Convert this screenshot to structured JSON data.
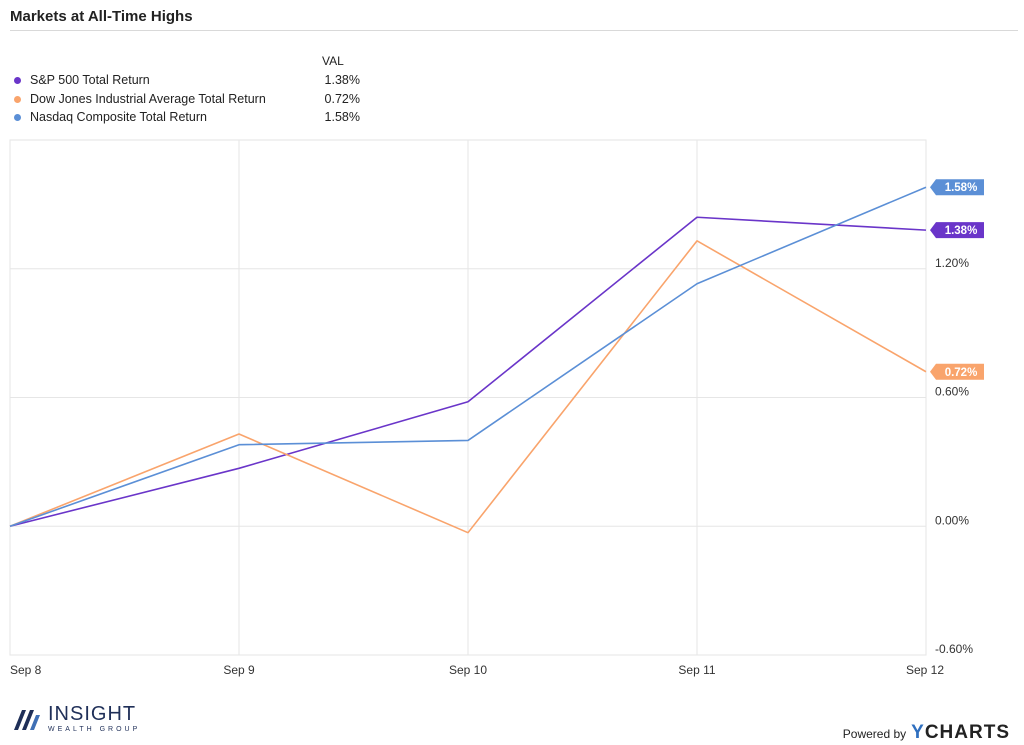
{
  "title": "Markets at All-Time Highs",
  "legend": {
    "value_header": "VAL",
    "entries": [
      {
        "name": "S&P 500 Total Return",
        "value": "1.38%",
        "color": "#6a35c9"
      },
      {
        "name": "Dow Jones Industrial Average Total Return",
        "value": "0.72%",
        "color": "#f9a46c"
      },
      {
        "name": "Nasdaq Composite Total Return",
        "value": "1.58%",
        "color": "#5b8fd6"
      }
    ]
  },
  "chart_data": {
    "type": "line",
    "title": "Markets at All-Time Highs",
    "x": [
      "Sep 8",
      "Sep 9",
      "Sep 10",
      "Sep 11",
      "Sep 12"
    ],
    "ylim": [
      -0.6,
      1.8
    ],
    "yticks": [
      -0.6,
      0.0,
      0.6,
      1.2
    ],
    "ytick_labels": [
      "-0.60%",
      "0.00%",
      "0.60%",
      "1.20%"
    ],
    "grid": true,
    "legend_position": "top-left",
    "series": [
      {
        "name": "S&P 500 Total Return",
        "color": "#6a35c9",
        "values": [
          0.0,
          0.27,
          0.58,
          1.44,
          1.38
        ],
        "end_label": "1.38%"
      },
      {
        "name": "Dow Jones Industrial Average Total Return",
        "color": "#f9a46c",
        "values": [
          0.0,
          0.43,
          -0.03,
          1.33,
          0.72
        ],
        "end_label": "0.72%"
      },
      {
        "name": "Nasdaq Composite Total Return",
        "color": "#5b8fd6",
        "values": [
          0.0,
          0.38,
          0.4,
          1.13,
          1.58
        ],
        "end_label": "1.58%"
      }
    ]
  },
  "footer": {
    "brand_main": "INSIGHT",
    "brand_sub": "WEALTH GROUP",
    "powered_by": "Powered by",
    "ycharts_y": "Y",
    "ycharts_rest": "CHARTS"
  }
}
